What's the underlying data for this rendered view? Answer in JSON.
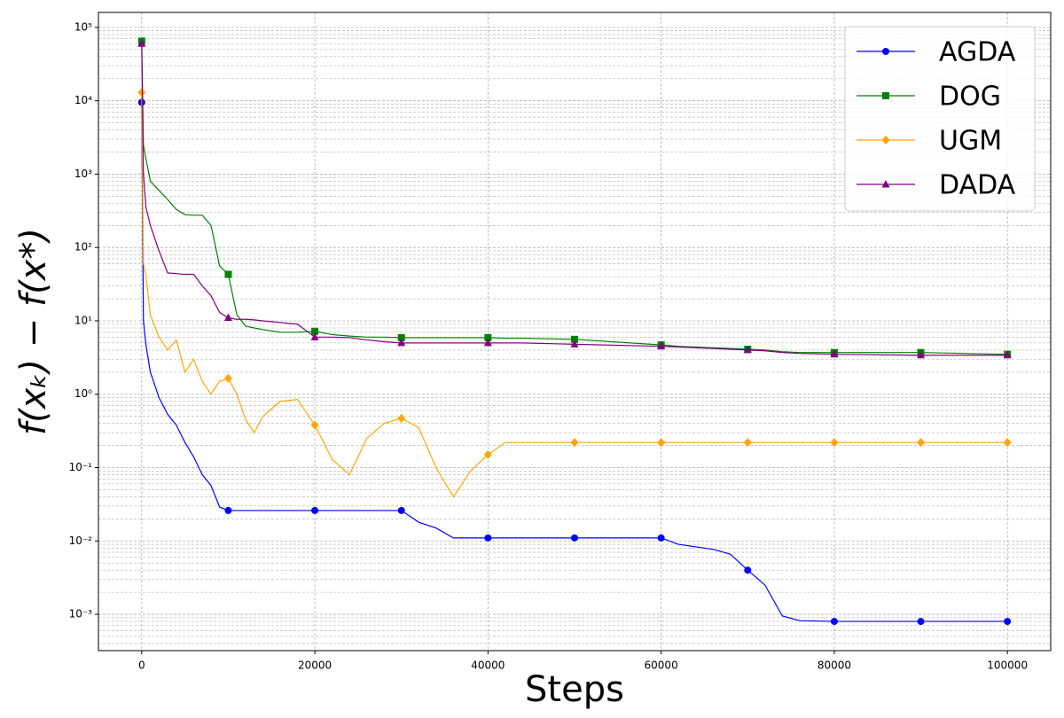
{
  "chart_data": {
    "type": "line",
    "xlabel": "Steps",
    "ylabel": "f(xₖ) − f(x*)",
    "x": [
      0,
      200,
      500,
      1000,
      2000,
      3000,
      4000,
      5000,
      6000,
      7000,
      8000,
      9000,
      10000,
      11000,
      12000,
      13000,
      14000,
      16000,
      18000,
      20000,
      22000,
      24000,
      26000,
      28000,
      30000,
      32000,
      34000,
      36000,
      38000,
      40000,
      42000,
      44000,
      50000,
      60000,
      62000,
      66000,
      68000,
      70000,
      72000,
      74000,
      76000,
      80000,
      90000,
      100000
    ],
    "series": [
      {
        "name": "AGDA",
        "color": "#0000ff",
        "marker": "circle",
        "values": [
          9500,
          10,
          4.6,
          2,
          0.9,
          0.53,
          0.38,
          0.22,
          0.14,
          0.08,
          0.057,
          0.029,
          0.026,
          0.026,
          0.026,
          0.026,
          0.026,
          0.026,
          0.026,
          0.026,
          0.026,
          0.026,
          0.026,
          0.026,
          0.026,
          0.018,
          0.015,
          0.011,
          0.011,
          0.011,
          0.011,
          0.011,
          0.011,
          0.011,
          0.009,
          0.0077,
          0.0066,
          0.004,
          0.0025,
          0.00095,
          0.00082,
          0.0008,
          0.0008,
          0.0008
        ]
      },
      {
        "name": "DOG",
        "color": "#008000",
        "marker": "square",
        "values": [
          65000,
          2500,
          1600,
          800,
          600,
          450,
          330,
          280,
          275,
          275,
          200,
          56,
          43,
          12,
          8.5,
          8,
          7.6,
          7.0,
          7.0,
          7.2,
          6.5,
          6.2,
          6.0,
          6.0,
          5.9,
          5.9,
          5.9,
          5.9,
          5.9,
          5.9,
          5.8,
          5.8,
          5.6,
          4.7,
          4.5,
          4.3,
          4.2,
          4.1,
          4.0,
          3.8,
          3.7,
          3.7,
          3.7,
          3.5
        ]
      },
      {
        "name": "UGM",
        "color": "#ffa500",
        "marker": "diamond",
        "values": [
          13000,
          60,
          40,
          12,
          6,
          4,
          5.5,
          2,
          3,
          1.5,
          1.0,
          1.5,
          1.65,
          1.0,
          0.45,
          0.3,
          0.5,
          0.8,
          0.85,
          0.38,
          0.13,
          0.08,
          0.25,
          0.4,
          0.47,
          0.35,
          0.1,
          0.04,
          0.09,
          0.15,
          0.22,
          0.22,
          0.22,
          0.22,
          0.22,
          0.22,
          0.22,
          0.22,
          0.22,
          0.22,
          0.22,
          0.22,
          0.22,
          0.22
        ]
      },
      {
        "name": "DADA",
        "color": "#800080",
        "marker": "triangle",
        "values": [
          60000,
          1000,
          350,
          200,
          90,
          45,
          44,
          43,
          43,
          30,
          22,
          13,
          11,
          10.5,
          10.5,
          10.3,
          10,
          9.5,
          9,
          6,
          6,
          5.9,
          5.5,
          5.2,
          5.0,
          5.0,
          5.0,
          5.0,
          5.0,
          5.0,
          5.0,
          5.0,
          4.8,
          4.5,
          4.4,
          4.2,
          4.1,
          4.0,
          3.9,
          3.7,
          3.6,
          3.5,
          3.4,
          3.4
        ]
      }
    ],
    "xlim": [
      -5000,
      105000
    ],
    "xticks": [
      0,
      20000,
      40000,
      60000,
      80000,
      100000
    ],
    "ylim": [
      0.00032,
      160000
    ],
    "yscale": "log",
    "yticks": [
      {
        "value": 0.001,
        "label": "10⁻³"
      },
      {
        "value": 0.01,
        "label": "10⁻²"
      },
      {
        "value": 0.1,
        "label": "10⁻¹"
      },
      {
        "value": 1,
        "label": "10⁰"
      },
      {
        "value": 10,
        "label": "10¹"
      },
      {
        "value": 100,
        "label": "10²"
      },
      {
        "value": 1000,
        "label": "10³"
      },
      {
        "value": 10000,
        "label": "10⁴"
      },
      {
        "value": 100000,
        "label": "10⁵"
      }
    ],
    "grid": true,
    "legend": "upper right"
  }
}
